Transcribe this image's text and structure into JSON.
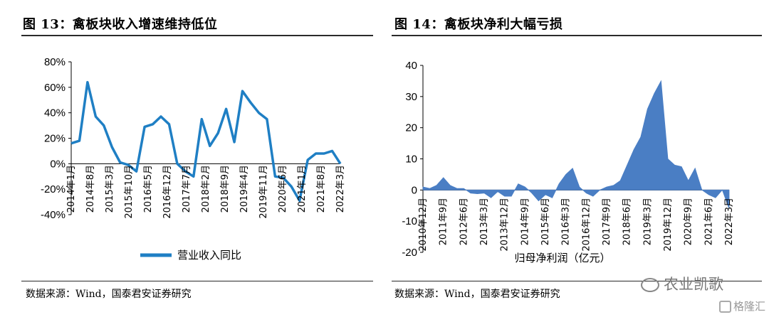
{
  "left": {
    "title": "图 13：禽板块收入增速维持低位",
    "source": "数据来源：Wind，国泰君安证券研究"
  },
  "right": {
    "title": "图 14：禽板块净利大幅亏损",
    "source": "数据来源：Wind，国泰君安证券研究"
  },
  "watermark": {
    "account": "农业凯歌",
    "brand": "格隆汇"
  },
  "chart_data": [
    {
      "type": "line",
      "x_labels": [
        "2014年1月",
        "2014年8月",
        "2015年3月",
        "2015年10月",
        "2016年5月",
        "2016年12月",
        "2017年7月",
        "2018年2月",
        "2018年9月",
        "2019年4月",
        "2019年11月",
        "2020年6月",
        "2021年1月",
        "2021年8月",
        "2022年3月"
      ],
      "series": [
        {
          "name": "营业收入同比",
          "color": "#1f7fc4",
          "values": [
            16,
            18,
            64,
            37,
            30,
            13,
            1,
            -1,
            -6,
            29,
            31,
            37,
            31,
            0,
            -6,
            -10,
            35,
            14,
            24,
            43,
            17,
            57,
            48,
            40,
            35,
            -10,
            -11,
            -18,
            -29,
            3,
            8,
            8,
            10,
            0
          ]
        }
      ],
      "y_ticks": [
        "80%",
        "60%",
        "40%",
        "20%",
        "0%",
        "-20%",
        "-40%"
      ],
      "y_tick_values": [
        80,
        60,
        40,
        20,
        0,
        -20,
        -40
      ],
      "ylim": [
        -40,
        80
      ],
      "legend": "bottom-center"
    },
    {
      "type": "area",
      "x_labels": [
        "2010年12月",
        "2011年9月",
        "2012年6月",
        "2013年3月",
        "2013年12月",
        "2014年9月",
        "2015年6月",
        "2016年3月",
        "2016年12月",
        "2017年9月",
        "2018年6月",
        "2019年3月",
        "2019年12月",
        "2020年9月",
        "2021年6月",
        "2022年3月"
      ],
      "series": [
        {
          "name": "归母净利润（亿元）",
          "color": "#4a7ec4",
          "values": [
            1,
            0.5,
            1.5,
            4,
            1.5,
            0.5,
            0.5,
            -1,
            -1.2,
            -1,
            -2.5,
            -0.5,
            -2,
            -2,
            2,
            1,
            -1,
            -3.5,
            -1.5,
            -2.5,
            2,
            5,
            7,
            1,
            -1,
            -2,
            0,
            1,
            1.5,
            3,
            8,
            13,
            17,
            26,
            31,
            35,
            10,
            8,
            7.5,
            3,
            7,
            0,
            -1.5,
            -2.5,
            0,
            -6
          ]
        }
      ],
      "y_ticks": [
        "40",
        "30",
        "20",
        "10",
        "0",
        "-10",
        "-20"
      ],
      "y_tick_values": [
        40,
        30,
        20,
        10,
        0,
        -10,
        -20
      ],
      "ylim": [
        -20,
        40
      ],
      "legend": "bottom-center"
    }
  ]
}
